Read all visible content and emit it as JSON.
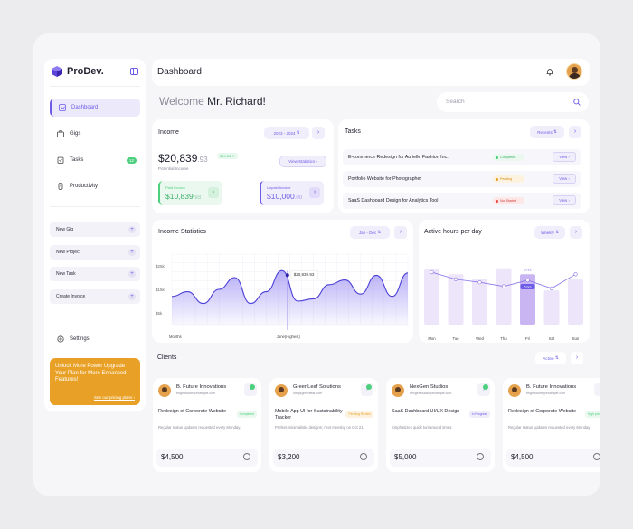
{
  "app": {
    "name": "ProDev."
  },
  "sidebar": {
    "items": [
      {
        "label": "Dashboard"
      },
      {
        "label": "Gigs"
      },
      {
        "label": "Tasks",
        "badge": "12"
      },
      {
        "label": "Productivity"
      }
    ],
    "actions": [
      {
        "label": "New Gig"
      },
      {
        "label": "New Project"
      },
      {
        "label": "New Task"
      },
      {
        "label": "Create Invoice"
      }
    ],
    "settings": "Settings",
    "promo": {
      "text": "Unlock More Power Upgrade Your Plan for More Enhanced Features!",
      "link": "See our pricing plans"
    }
  },
  "header": {
    "title": "Dashboard",
    "welcome_prefix": "Welcome",
    "welcome_name": "Mr. Richard!",
    "search_placeholder": "Search"
  },
  "income": {
    "title": "Income",
    "period": "2023 - 2024",
    "amount": "$20,839",
    "cents": ".93",
    "change": "$24.56",
    "label": "Potential Income",
    "view_stats": "View Statistics",
    "paid": {
      "label": "Paid Invoice",
      "amount": "$10,839",
      "cents": ".93"
    },
    "unpaid": {
      "label": "Unpaid Invoice",
      "amount": "$10,000",
      "cents": ".00"
    }
  },
  "tasks": {
    "title": "Tasks",
    "filter": "Recents",
    "rows": [
      {
        "name": "E-commerce Redesign for Aurielle Fashion Inc.",
        "status": "Completed",
        "color": "#4cd07d",
        "action": "View"
      },
      {
        "name": "Portfolio Website for Photographer",
        "status": "Pending",
        "color": "#e8a126",
        "action": "View"
      },
      {
        "name": "SaaS Dashboard Design for Analytics Tool",
        "status": "Not Started",
        "color": "#e84a4a",
        "action": "View"
      }
    ]
  },
  "income_stats": {
    "title": "Income Statistics",
    "period": "Jan - Dec",
    "tooltip": "$20,839.93",
    "xlabels": [
      "Months",
      "June(Highest)"
    ]
  },
  "hours": {
    "title": "Active hours per day",
    "period": "Weekly",
    "tooltip_top": "6 hrs",
    "tooltip_bottom": "5 hrs"
  },
  "clients": {
    "title": "Clients",
    "filter": "Active",
    "items": [
      {
        "name": "B. Future Innovations",
        "email": "brightfuture@example.com",
        "project": "Redesign of Corporate Website",
        "status": "Completed",
        "status_color": "#4cd07d",
        "desc": "Regular status updates requested every Monday.",
        "price": "$4,500"
      },
      {
        "name": "GreenLeaf Solutions",
        "email": "info@greenleaf.com",
        "project": "Mobile App UI for Sustainability Tracker",
        "status": "Pending Review",
        "status_color": "#e8a126",
        "desc": "Prefers minimalistic designs; next meeting on Oct 21.",
        "price": "$3,200"
      },
      {
        "name": "NexGen Studios",
        "email": "nexgenstudio@example.com",
        "project": "SaaS Dashboard UI/UX Design",
        "status": "In Progress",
        "status_color": "#6c5ce7",
        "desc": "Emphasizes quick turnaround times.",
        "price": "$5,000"
      },
      {
        "name": "B. Future Innovations",
        "email": "brightfuture@example.com",
        "project": "Redesign of Corporate Website",
        "status": "High priority",
        "status_color": "#4cd07d",
        "desc": "Regular status updates requested every Monday.",
        "price": "$4,500"
      }
    ]
  },
  "chart_data": [
    {
      "type": "area",
      "title": "Income Statistics",
      "y_ticks": [
        "$25k",
        "$15k",
        "$5k"
      ],
      "xlabel": "Months",
      "highlight": "June(Highest)",
      "values": [
        12,
        14,
        9,
        15,
        20,
        9,
        14,
        23,
        10,
        11,
        17,
        19,
        13,
        21,
        12,
        22
      ],
      "ylim": [
        0,
        30
      ],
      "peak_value": 20839.93
    },
    {
      "type": "bar",
      "title": "Active hours per day",
      "categories": [
        "Mon",
        "Tue",
        "Wed",
        "Thu",
        "Fri",
        "Sat",
        "Sun"
      ],
      "values": [
        5.5,
        5,
        4.5,
        5.6,
        5,
        3.4,
        4.5
      ],
      "line": [
        5.2,
        4.5,
        4.2,
        3.8,
        4.4,
        3.6,
        5.0
      ],
      "highlight": "Fri",
      "ylim": [
        0,
        7
      ]
    }
  ],
  "colors": {
    "accent": "#6c5ce7",
    "promo": "#e8a126",
    "green": "#4cd07d"
  }
}
